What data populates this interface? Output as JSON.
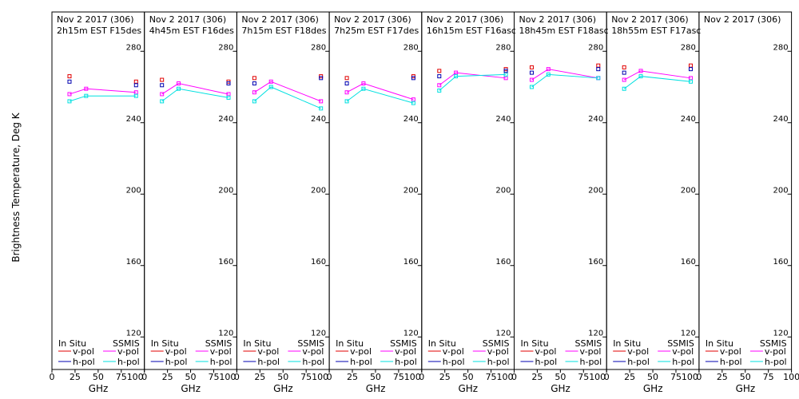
{
  "ylabel": "Brightness Temperature, Deg K",
  "xlabel": "GHz",
  "colors": {
    "insitu_v": "#e00000",
    "insitu_h": "#0000b0",
    "ssmis_v": "#ff00ff",
    "ssmis_h": "#00e0e0",
    "axis": "#000000"
  },
  "legend": {
    "insitu_title": "In Situ",
    "ssmis_title": "SSMIS",
    "vpol": "v-pol",
    "hpol": "h-pol"
  },
  "chart_data": {
    "type": "line",
    "ylim": [
      100,
      295
    ],
    "yticks": [
      120,
      160,
      200,
      240,
      280
    ],
    "xlim": [
      0,
      100
    ],
    "xticks": [
      0,
      25,
      50,
      75,
      100
    ],
    "xtick_labels": [
      "0",
      "25",
      "50",
      "75",
      "100"
    ],
    "last_xtick_labels": [
      "0",
      "25",
      "50",
      "75",
      "100"
    ],
    "panels": [
      {
        "date": "Nov 2 2017 (306)",
        "title": "2h15m  EST  F15des",
        "ssmis_v": [
          [
            19,
            256
          ],
          [
            37,
            259
          ],
          [
            91,
            257
          ]
        ],
        "ssmis_h": [
          [
            19,
            252
          ],
          [
            37,
            255
          ],
          [
            91,
            255
          ]
        ],
        "insitu_v": [
          [
            19,
            266
          ],
          [
            91,
            263
          ]
        ],
        "insitu_h": [
          [
            19,
            263
          ],
          [
            91,
            261
          ]
        ]
      },
      {
        "date": "Nov 2 2017 (306)",
        "title": "4h45m  EST  F16des",
        "ssmis_v": [
          [
            19,
            256
          ],
          [
            37,
            262
          ],
          [
            91,
            256
          ]
        ],
        "ssmis_h": [
          [
            19,
            252
          ],
          [
            37,
            259
          ],
          [
            91,
            254
          ]
        ],
        "insitu_v": [
          [
            19,
            264
          ],
          [
            91,
            263
          ]
        ],
        "insitu_h": [
          [
            19,
            261
          ],
          [
            91,
            262
          ]
        ]
      },
      {
        "date": "Nov 2 2017 (306)",
        "title": "7h15m  EST  F18des",
        "ssmis_v": [
          [
            19,
            257
          ],
          [
            37,
            263
          ],
          [
            91,
            252
          ]
        ],
        "ssmis_h": [
          [
            19,
            252
          ],
          [
            37,
            260
          ],
          [
            91,
            248
          ]
        ],
        "insitu_v": [
          [
            19,
            265
          ],
          [
            91,
            266
          ]
        ],
        "insitu_h": [
          [
            19,
            262
          ],
          [
            91,
            265
          ]
        ]
      },
      {
        "date": "Nov 2 2017 (306)",
        "title": "7h25m  EST  F17des",
        "ssmis_v": [
          [
            19,
            257
          ],
          [
            37,
            262
          ],
          [
            91,
            253
          ]
        ],
        "ssmis_h": [
          [
            19,
            252
          ],
          [
            37,
            259
          ],
          [
            91,
            251
          ]
        ],
        "insitu_v": [
          [
            19,
            265
          ],
          [
            91,
            266
          ]
        ],
        "insitu_h": [
          [
            19,
            262
          ],
          [
            91,
            265
          ]
        ]
      },
      {
        "date": "Nov 2 2017 (306)",
        "title": "16h15m  EST  F16asc",
        "ssmis_v": [
          [
            19,
            261
          ],
          [
            37,
            268
          ],
          [
            91,
            265
          ]
        ],
        "ssmis_h": [
          [
            19,
            258
          ],
          [
            37,
            266
          ],
          [
            91,
            267
          ]
        ],
        "insitu_v": [
          [
            19,
            269
          ],
          [
            91,
            270
          ]
        ],
        "insitu_h": [
          [
            19,
            266
          ],
          [
            91,
            269
          ]
        ]
      },
      {
        "date": "Nov 2 2017 (306)",
        "title": "18h45m  EST  F18asc",
        "ssmis_v": [
          [
            19,
            264
          ],
          [
            37,
            270
          ],
          [
            91,
            265
          ]
        ],
        "ssmis_h": [
          [
            19,
            260
          ],
          [
            37,
            267
          ],
          [
            91,
            265
          ]
        ],
        "insitu_v": [
          [
            19,
            271
          ],
          [
            91,
            272
          ]
        ],
        "insitu_h": [
          [
            19,
            268
          ],
          [
            91,
            270
          ]
        ]
      },
      {
        "date": "Nov 2 2017 (306)",
        "title": "18h55m  EST  F17asc",
        "ssmis_v": [
          [
            19,
            264
          ],
          [
            37,
            269
          ],
          [
            91,
            265
          ]
        ],
        "ssmis_h": [
          [
            19,
            259
          ],
          [
            37,
            266
          ],
          [
            91,
            263
          ]
        ],
        "insitu_v": [
          [
            19,
            271
          ],
          [
            91,
            272
          ]
        ],
        "insitu_h": [
          [
            19,
            268
          ],
          [
            91,
            270
          ]
        ]
      },
      {
        "date": "Nov 2 2017 (306)",
        "title": "",
        "ssmis_v": [],
        "ssmis_h": [],
        "insitu_v": [],
        "insitu_h": []
      }
    ]
  }
}
